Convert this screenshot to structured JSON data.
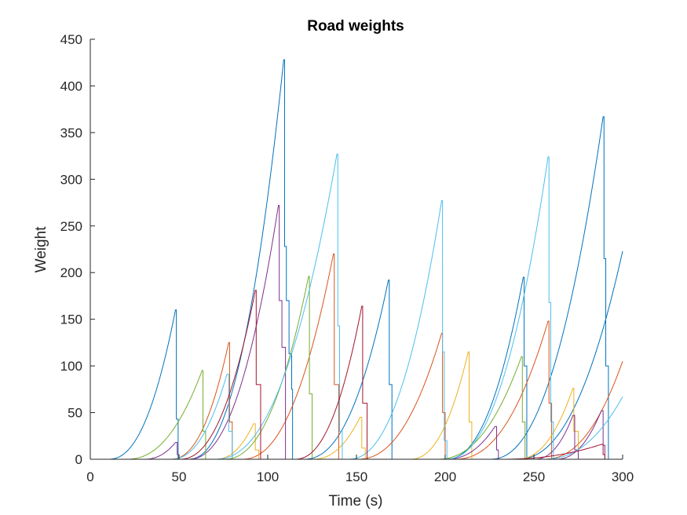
{
  "chart_data": {
    "type": "line",
    "title": "Road weights",
    "xlabel": "Time (s)",
    "ylabel": "Weight",
    "xlim": [
      0,
      300
    ],
    "ylim": [
      0,
      450
    ],
    "xticks": [
      0,
      50,
      100,
      150,
      200,
      250,
      300
    ],
    "yticks": [
      0,
      50,
      100,
      150,
      200,
      250,
      300,
      350,
      400,
      450
    ],
    "grid": false,
    "legend": "none",
    "colors": [
      "#0072BD",
      "#D95319",
      "#EDB120",
      "#7E2F8E",
      "#77AC30",
      "#4DBEEE",
      "#A2142F"
    ],
    "series": [
      {
        "color_index": 0,
        "pulses": [
          {
            "start": 10,
            "end": 48,
            "peak": 160,
            "drop_end": 50,
            "tail": [
              [
                48.5,
                43
              ],
              [
                49.5,
                0
              ]
            ]
          },
          {
            "start": 55,
            "end": 109,
            "peak": 428,
            "drop_end": 111,
            "tail": [
              [
                109.5,
                228
              ],
              [
                110.5,
                170
              ],
              [
                112,
                113
              ],
              [
                113.5,
                75
              ],
              [
                114,
                0
              ]
            ]
          },
          {
            "start": 120,
            "end": 168,
            "peak": 192,
            "drop_end": 170,
            "tail": [
              [
                168.5,
                80
              ],
              [
                170,
                0
              ]
            ]
          },
          {
            "start": 200,
            "end": 244,
            "peak": 195,
            "drop_end": 246,
            "tail": [
              [
                244.5,
                100
              ],
              [
                246,
                0
              ]
            ]
          },
          {
            "start": 225,
            "end": 289,
            "peak": 367,
            "drop_end": 292,
            "tail": [
              [
                289.5,
                215
              ],
              [
                290.5,
                100
              ],
              [
                292,
                0
              ]
            ]
          },
          {
            "start": 240,
            "end": 300,
            "peak": 223,
            "drop_end": 300,
            "tail": []
          }
        ]
      },
      {
        "color_index": 1,
        "pulses": [
          {
            "start": 45,
            "end": 78,
            "peak": 125,
            "drop_end": 80,
            "tail": [
              [
                78.5,
                40
              ],
              [
                80,
                0
              ]
            ]
          },
          {
            "start": 85,
            "end": 137,
            "peak": 220,
            "drop_end": 140,
            "tail": [
              [
                137.5,
                80
              ],
              [
                140,
                0
              ]
            ]
          },
          {
            "start": 150,
            "end": 198,
            "peak": 135,
            "drop_end": 200,
            "tail": [
              [
                198.5,
                50
              ],
              [
                200,
                0
              ]
            ]
          },
          {
            "start": 205,
            "end": 258,
            "peak": 148,
            "drop_end": 260,
            "tail": [
              [
                258.5,
                60
              ],
              [
                260,
                0
              ]
            ]
          },
          {
            "start": 255,
            "end": 300,
            "peak": 105,
            "drop_end": 300,
            "tail": []
          }
        ]
      },
      {
        "color_index": 2,
        "pulses": [
          {
            "start": 70,
            "end": 92,
            "peak": 38,
            "drop_end": 95,
            "tail": [
              [
                93,
                10
              ],
              [
                95,
                0
              ]
            ]
          },
          {
            "start": 125,
            "end": 152,
            "peak": 45,
            "drop_end": 155,
            "tail": [
              [
                153,
                12
              ],
              [
                155,
                0
              ]
            ]
          },
          {
            "start": 180,
            "end": 213,
            "peak": 115,
            "drop_end": 215,
            "tail": [
              [
                213.5,
                40
              ],
              [
                215,
                0
              ]
            ]
          },
          {
            "start": 240,
            "end": 272,
            "peak": 76,
            "drop_end": 275,
            "tail": [
              [
                272.5,
                30
              ],
              [
                275,
                0
              ]
            ]
          }
        ]
      },
      {
        "color_index": 3,
        "pulses": [
          {
            "start": 30,
            "end": 48,
            "peak": 18,
            "drop_end": 50,
            "tail": [
              [
                49,
                5
              ],
              [
                50,
                0
              ]
            ]
          },
          {
            "start": 55,
            "end": 106,
            "peak": 272,
            "drop_end": 110,
            "tail": [
              [
                106.5,
                170
              ],
              [
                108,
                120
              ],
              [
                110,
                0
              ]
            ]
          },
          {
            "start": 200,
            "end": 228,
            "peak": 35,
            "drop_end": 230,
            "tail": [
              [
                229,
                10
              ],
              [
                230,
                0
              ]
            ]
          },
          {
            "start": 250,
            "end": 272,
            "peak": 47,
            "drop_end": 275,
            "tail": [
              [
                273,
                10
              ],
              [
                275,
                0
              ]
            ]
          },
          {
            "start": 262,
            "end": 288,
            "peak": 52,
            "drop_end": 290,
            "tail": [
              [
                289,
                15
              ],
              [
                290,
                0
              ]
            ]
          }
        ]
      },
      {
        "color_index": 4,
        "pulses": [
          {
            "start": 20,
            "end": 63,
            "peak": 95,
            "drop_end": 65,
            "tail": [
              [
                63.5,
                30
              ],
              [
                65,
                0
              ]
            ]
          },
          {
            "start": 75,
            "end": 123,
            "peak": 196,
            "drop_end": 125,
            "tail": [
              [
                123.5,
                70
              ],
              [
                125,
                0
              ]
            ]
          },
          {
            "start": 195,
            "end": 243,
            "peak": 110,
            "drop_end": 245,
            "tail": [
              [
                243.5,
                40
              ],
              [
                245,
                0
              ]
            ]
          }
        ]
      },
      {
        "color_index": 5,
        "pulses": [
          {
            "start": 45,
            "end": 77,
            "peak": 91,
            "drop_end": 80,
            "tail": [
              [
                78,
                30
              ],
              [
                80,
                0
              ]
            ]
          },
          {
            "start": 70,
            "end": 139,
            "peak": 327,
            "drop_end": 142,
            "tail": [
              [
                139.5,
                143
              ],
              [
                140.5,
                30
              ],
              [
                142,
                0
              ]
            ]
          },
          {
            "start": 145,
            "end": 198,
            "peak": 277,
            "drop_end": 201,
            "tail": [
              [
                198.5,
                115
              ],
              [
                199.5,
                20
              ],
              [
                201,
                0
              ]
            ]
          },
          {
            "start": 200,
            "end": 258,
            "peak": 324,
            "drop_end": 261,
            "tail": [
              [
                258.5,
                168
              ],
              [
                259.5,
                40
              ],
              [
                261,
                0
              ]
            ]
          },
          {
            "start": 255,
            "end": 300,
            "peak": 67,
            "drop_end": 300,
            "tail": []
          }
        ]
      },
      {
        "color_index": 6,
        "pulses": [
          {
            "start": 50,
            "end": 93,
            "peak": 181,
            "drop_end": 96,
            "tail": [
              [
                93.5,
                80
              ],
              [
                96,
                0
              ]
            ]
          },
          {
            "start": 115,
            "end": 153,
            "peak": 164,
            "drop_end": 156,
            "tail": [
              [
                153.5,
                60
              ],
              [
                156,
                0
              ]
            ]
          },
          {
            "start": 230,
            "end": 288,
            "peak": 16,
            "drop_end": 290,
            "tail": [
              [
                289,
                5
              ],
              [
                290,
                0
              ]
            ]
          }
        ]
      }
    ]
  }
}
